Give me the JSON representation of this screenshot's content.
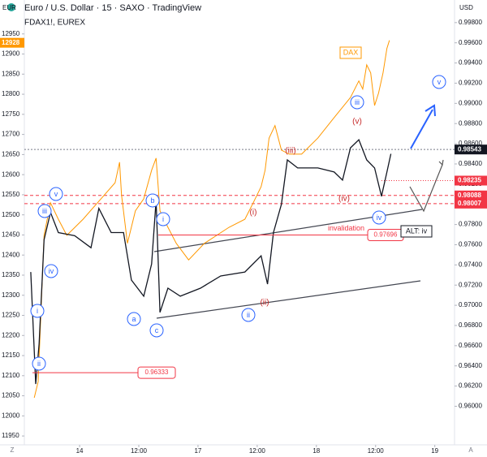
{
  "chart_data": {
    "type": "line",
    "title": "Euro / U.S. Dollar · 15 · SAXO · TradingView",
    "subtitle": "FDAX1!, EUREX",
    "y_axis_label": "EUR",
    "y2_axis_label": "USD",
    "grid": false,
    "xlim": [
      12.8,
      100
    ],
    "xticks": [
      {
        "value": 24,
        "label": "14"
      },
      {
        "value": 36,
        "label": "12:00"
      },
      {
        "value": 48,
        "label": "17"
      },
      {
        "value": 60,
        "label": "12:00"
      },
      {
        "value": 72,
        "label": "18"
      },
      {
        "value": 84,
        "label": "12:00"
      },
      {
        "value": 96,
        "label": "19"
      }
    ],
    "ylim": [
      11928,
      12994
    ],
    "yticks": [
      11950,
      12000,
      12050,
      12100,
      12150,
      12200,
      12250,
      12300,
      12350,
      12400,
      12450,
      12500,
      12550,
      12600,
      12650,
      12700,
      12750,
      12800,
      12850,
      12900,
      12950
    ],
    "y2lim": [
      0.95618,
      0.99863
    ],
    "y2ticks": [
      {
        "value": 0.96,
        "label": "0.96000"
      },
      {
        "value": 0.962,
        "label": "0.96200"
      },
      {
        "value": 0.964,
        "label": "0.96400"
      },
      {
        "value": 0.966,
        "label": "0.96600"
      },
      {
        "value": 0.968,
        "label": "0.96800"
      },
      {
        "value": 0.97,
        "label": "0.97000"
      },
      {
        "value": 0.972,
        "label": "0.97200"
      },
      {
        "value": 0.974,
        "label": "0.97400"
      },
      {
        "value": 0.976,
        "label": "0.97600"
      },
      {
        "value": 0.978,
        "label": "0.97800"
      },
      {
        "value": 0.98,
        "label": "0.98000"
      },
      {
        "value": 0.982,
        "label": "0.98200"
      },
      {
        "value": 0.984,
        "label": "0.98400"
      },
      {
        "value": 0.986,
        "label": "0.98600"
      },
      {
        "value": 0.988,
        "label": "0.98800"
      },
      {
        "value": 0.99,
        "label": "0.99000"
      },
      {
        "value": 0.992,
        "label": "0.99200"
      },
      {
        "value": 0.994,
        "label": "0.99400"
      },
      {
        "value": 0.996,
        "label": "0.99600"
      },
      {
        "value": 0.998,
        "label": "0.99800"
      }
    ],
    "series": [
      {
        "name": "DAX",
        "color": "#ff9800",
        "axis": "y",
        "x": [
          14.8,
          15.6,
          16.8,
          18.1,
          19.7,
          21.4,
          24.7,
          31.2,
          32.1,
          32.5,
          33.7,
          35.3,
          37.0,
          38.6,
          39.5,
          40.3,
          41.9,
          43.6,
          46.1,
          49.3,
          54.3,
          57.5,
          59.2,
          60.8,
          61.6,
          62.4,
          63.6,
          64.9,
          66.5,
          69.0,
          72.3,
          75.6,
          78.9,
          80.6,
          81.4,
          82.2,
          83.0,
          83.8,
          84.6,
          85.5,
          86.3,
          86.8
        ],
        "values": [
          12045,
          12085,
          12449,
          12530,
          12489,
          12449,
          12489,
          12580,
          12631,
          12550,
          12429,
          12510,
          12540,
          12611,
          12641,
          12510,
          12469,
          12429,
          12388,
          12429,
          12469,
          12489,
          12530,
          12570,
          12611,
          12691,
          12722,
          12661,
          12651,
          12651,
          12691,
          12742,
          12792,
          12833,
          12813,
          12873,
          12853,
          12772,
          12803,
          12853,
          12914,
          12934
        ]
      },
      {
        "name": "Euro / U.S. Dollar",
        "color": "#131722",
        "axis": "y2",
        "x": [
          14.1,
          15.1,
          15.8,
          16.8,
          18.1,
          19.7,
          23.0,
          26.3,
          27.9,
          30.4,
          32.9,
          34.5,
          37.0,
          38.6,
          39.5,
          40.3,
          41.9,
          44.4,
          48.5,
          52.6,
          57.5,
          60.8,
          62.1,
          63.3,
          64.9,
          66.1,
          68.2,
          72.3,
          75.6,
          77.3,
          78.9,
          80.6,
          82.2,
          83.8,
          85.2,
          86.3,
          87.1
        ],
        "values": [
          0.9733,
          0.9622,
          0.9662,
          0.9765,
          0.9792,
          0.9772,
          0.9769,
          0.9757,
          0.9796,
          0.9772,
          0.9772,
          0.9725,
          0.9709,
          0.9741,
          0.9804,
          0.9693,
          0.9717,
          0.9709,
          0.9717,
          0.9729,
          0.9733,
          0.9749,
          0.9721,
          0.9772,
          0.98,
          0.9844,
          0.9836,
          0.9836,
          0.9832,
          0.9824,
          0.9856,
          0.9864,
          0.9844,
          0.9836,
          0.9808,
          0.9832,
          0.985
        ]
      }
    ],
    "price_lines": [
      {
        "value": 0.98543,
        "color": "#131722"
      },
      {
        "value": 0.98235,
        "color": "#f23645"
      },
      {
        "value": 0.98088,
        "color": "#f23645"
      },
      {
        "value": 0.98007,
        "color": "#f23645"
      }
    ],
    "dax_last": 12928,
    "invalidation": {
      "text": "invalidation",
      "value": 0.97696
    },
    "low_level": 0.96333,
    "wave_labels": [
      "i",
      "ii",
      "iii",
      "iv",
      "v",
      "i",
      "a",
      "b",
      "c",
      "ii",
      "iii",
      "iv",
      "v"
    ],
    "sub_wave_labels": [
      "(i)",
      "(ii)",
      "(iii)",
      "(iv)",
      "(v)"
    ],
    "dax_label": "DAX",
    "alt_label": "ALT: iv",
    "scale_buttons": [
      "Z",
      "A"
    ]
  }
}
